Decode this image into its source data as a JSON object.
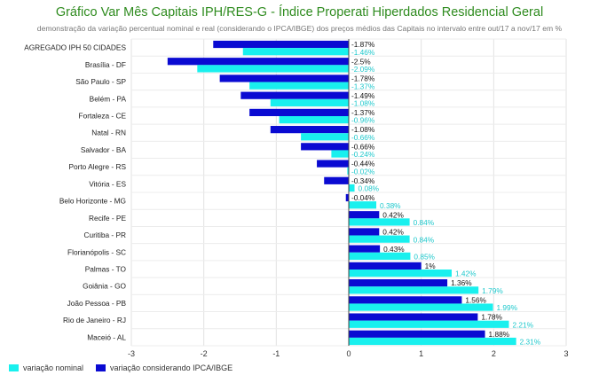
{
  "chart_data": {
    "type": "bar",
    "orientation": "horizontal",
    "title": "Gráfico Var Mês Capitais IPH/RES-G - Índice Properati Hiperdados Residencial Geral",
    "subtitle": "demonstração da variação percentual nominal e real (considerando o IPCA/IBGE) dos preços médios das Capitais no intervalo entre out/17 a nov/17 em %",
    "categories": [
      "AGREGADO IPH 50 CIDADES",
      "Brasília - DF",
      "São Paulo - SP",
      "Belém - PA",
      "Fortaleza - CE",
      "Natal - RN",
      "Salvador - BA",
      "Porto Alegre - RS",
      "Vitória - ES",
      "Belo Horizonte - MG",
      "Recife - PE",
      "Curitiba - PR",
      "Florianópolis - SC",
      "Palmas - TO",
      "Goiânia - GO",
      "João Pessoa - PB",
      "Rio de Janeiro - RJ",
      "Maceió - AL"
    ],
    "series": [
      {
        "name": "variação considerando IPCA/IBGE",
        "color": "#0a0ad2",
        "values": [
          -1.87,
          -2.5,
          -1.78,
          -1.49,
          -1.37,
          -1.08,
          -0.66,
          -0.44,
          -0.34,
          -0.04,
          0.42,
          0.42,
          0.43,
          1,
          1.36,
          1.56,
          1.78,
          1.88
        ],
        "labels": [
          "-1.87%",
          "-2.5%",
          "-1.78%",
          "-1.49%",
          "-1.37%",
          "-1.08%",
          "-0.66%",
          "-0.44%",
          "-0.34%",
          "-0.04%",
          "0.42%",
          "0.42%",
          "0.43%",
          "1%",
          "1.36%",
          "1.56%",
          "1.78%",
          "1.88%"
        ]
      },
      {
        "name": "variação nominal",
        "color": "#19f0ee",
        "values": [
          -1.46,
          -2.09,
          -1.37,
          -1.08,
          -0.96,
          -0.66,
          -0.24,
          -0.02,
          0.08,
          0.38,
          0.84,
          0.84,
          0.85,
          1.42,
          1.79,
          1.99,
          2.21,
          2.31
        ],
        "labels": [
          "-1.46%",
          "-2.09%",
          "-1.37%",
          "-1.08%",
          "-0.96%",
          "-0.66%",
          "-0.24%",
          "-0.02%",
          "0.08%",
          "0.38%",
          "0.84%",
          "0.84%",
          "0.85%",
          "1.42%",
          "1.79%",
          "1.99%",
          "2.21%",
          "2.31%"
        ]
      }
    ],
    "xlim": [
      -3,
      3
    ],
    "xticks": [
      "-3",
      "-2",
      "-1",
      "0",
      "1",
      "2",
      "3"
    ],
    "grid": true,
    "legend_position": "bottom-left"
  }
}
